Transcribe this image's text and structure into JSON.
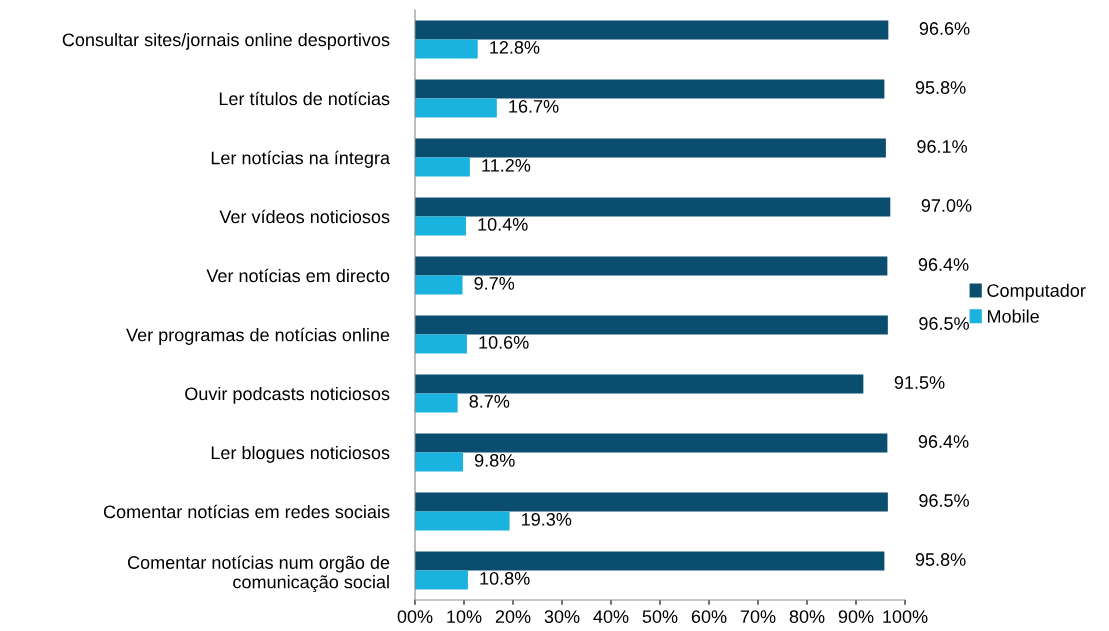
{
  "chart_data": {
    "type": "bar",
    "orientation": "horizontal",
    "categories": [
      "Consultar sites/jornais online desportivos",
      "Ler títulos de notícias",
      "Ler notícias na íntegra",
      "Ver vídeos noticiosos",
      "Ver notícias em directo",
      "Ver programas de notícias online",
      "Ouvir podcasts noticiosos",
      "Ler blogues noticiosos",
      "Comentar notícias em redes sociais",
      "Comentar notícias num orgão de\ncomunicação social"
    ],
    "series": [
      {
        "name": "Computador",
        "color": "#0b4d6e",
        "values": [
          96.6,
          95.8,
          96.1,
          97.0,
          96.4,
          96.5,
          91.5,
          96.4,
          96.5,
          95.8
        ],
        "value_labels": [
          "96.6%",
          "95.8%",
          "96.1%",
          "97.0%",
          "96.4%",
          "96.5%",
          "91.5%",
          "96.4%",
          "96.5%",
          "95.8%"
        ]
      },
      {
        "name": "Mobile",
        "color": "#1ab3e0",
        "values": [
          12.8,
          16.7,
          11.2,
          10.4,
          9.7,
          10.6,
          8.7,
          9.8,
          19.3,
          10.8
        ],
        "value_labels": [
          "12.8%",
          "16.7%",
          "11.2%",
          "10.4%",
          "9.7%",
          "10.6%",
          "8.7%",
          "9.8%",
          "19.3%",
          "10.8%"
        ]
      }
    ],
    "xlim": [
      0,
      100
    ],
    "xticks": [
      {
        "value": 0,
        "label": "00%"
      },
      {
        "value": 10,
        "label": "10%"
      },
      {
        "value": 20,
        "label": "20%"
      },
      {
        "value": 30,
        "label": "30%"
      },
      {
        "value": 40,
        "label": "40%"
      },
      {
        "value": 50,
        "label": "50%"
      },
      {
        "value": 60,
        "label": "60%"
      },
      {
        "value": 70,
        "label": "70%"
      },
      {
        "value": 80,
        "label": "80%"
      },
      {
        "value": 90,
        "label": "90%"
      },
      {
        "value": 100,
        "label": "100%"
      }
    ],
    "grid": false,
    "legend": "right"
  }
}
